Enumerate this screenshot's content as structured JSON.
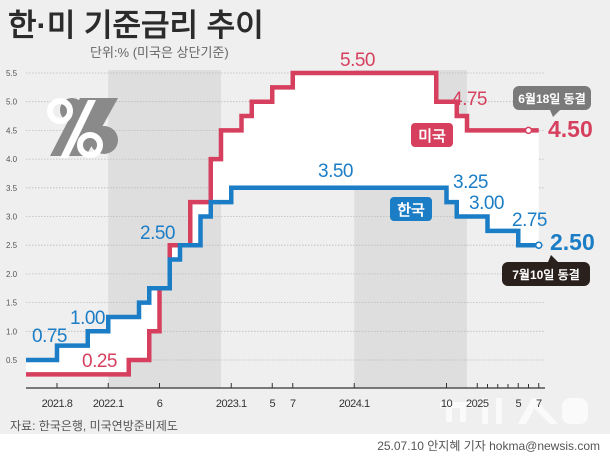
{
  "title": "한·미 기준금리 추이",
  "subtitle": "단위:% (미국은 상단기준)",
  "source": "자료: 한국은행, 미국연방준비제도",
  "credit": "25.07.10 안지혜 기자 hokma@newsis.com",
  "watermark": "뉴시스",
  "icon": "percent-icon",
  "colors": {
    "us": "#d6405e",
    "korea": "#1b7dc6",
    "background": "#efefef",
    "shade": "#dedede"
  },
  "chart_data": {
    "type": "line",
    "step": true,
    "title": "한·미 기준금리 추이",
    "ylabel": "단위:% (미국은 상단기준)",
    "xlim": [
      "2021-05",
      "2025-07"
    ],
    "ylim": [
      0,
      5.5
    ],
    "yticks": [
      "0.5",
      "1.0",
      "1.5",
      "2.0",
      "2.5",
      "3.0",
      "3.5",
      "4.0",
      "4.5",
      "5.0",
      "5.5"
    ],
    "xticks": [
      {
        "date": "2021-08",
        "label": "2021.8"
      },
      {
        "date": "2022-01",
        "label": "2022.1"
      },
      {
        "date": "2022-06",
        "label": "6"
      },
      {
        "date": "2023-01",
        "label": "2023.1"
      },
      {
        "date": "2023-05",
        "label": "5"
      },
      {
        "date": "2023-07",
        "label": "7"
      },
      {
        "date": "2024-01",
        "label": "2024.1"
      },
      {
        "date": "2024-10",
        "label": "10"
      },
      {
        "date": "2025-01",
        "label": "2025"
      },
      {
        "date": "2025-05",
        "label": "5"
      },
      {
        "date": "2025-07",
        "label": "7"
      }
    ],
    "minor_xticks": [
      "2025-02",
      "2025-03",
      "2025-04",
      "2025-06"
    ],
    "grid": true,
    "shaded_periods": [
      [
        "2022-01",
        "2022-12"
      ],
      [
        "2024-01",
        "2024-12"
      ]
    ],
    "series": [
      {
        "name": "미국",
        "color": "#d6405e",
        "end": "2025-07",
        "marker_at": "2025-06",
        "steps": [
          [
            "2021-05",
            0.25
          ],
          [
            "2022-03",
            0.5
          ],
          [
            "2022-05",
            1.0
          ],
          [
            "2022-06",
            1.75
          ],
          [
            "2022-07",
            2.5
          ],
          [
            "2022-09",
            3.25
          ],
          [
            "2022-11",
            4.0
          ],
          [
            "2022-12",
            4.5
          ],
          [
            "2023-02",
            4.75
          ],
          [
            "2023-03",
            5.0
          ],
          [
            "2023-05",
            5.25
          ],
          [
            "2023-07",
            5.5
          ],
          [
            "2024-09",
            5.0
          ],
          [
            "2024-11",
            4.75
          ],
          [
            "2024-12",
            4.5
          ]
        ]
      },
      {
        "name": "한국",
        "color": "#1b7dc6",
        "end": "2025-07",
        "marker_at": "2025-07",
        "steps": [
          [
            "2021-05",
            0.5
          ],
          [
            "2021-08",
            0.75
          ],
          [
            "2021-11",
            1.0
          ],
          [
            "2022-01",
            1.25
          ],
          [
            "2022-04",
            1.5
          ],
          [
            "2022-05",
            1.75
          ],
          [
            "2022-07",
            2.25
          ],
          [
            "2022-08",
            2.5
          ],
          [
            "2022-10",
            3.0
          ],
          [
            "2022-11",
            3.25
          ],
          [
            "2023-01",
            3.5
          ],
          [
            "2024-10",
            3.25
          ],
          [
            "2024-11",
            3.0
          ],
          [
            "2025-02",
            2.75
          ],
          [
            "2025-05",
            2.5
          ]
        ]
      }
    ],
    "data_labels": {
      "korea": [
        "0.75",
        "1.00",
        "2.50",
        "3.50",
        "3.25",
        "3.00",
        "2.75",
        "2.50"
      ],
      "us": [
        "0.25",
        "5.50",
        "4.75",
        "4.50"
      ]
    },
    "callouts": {
      "us": "6월18일 동결",
      "korea": "7월10일 동결"
    }
  }
}
